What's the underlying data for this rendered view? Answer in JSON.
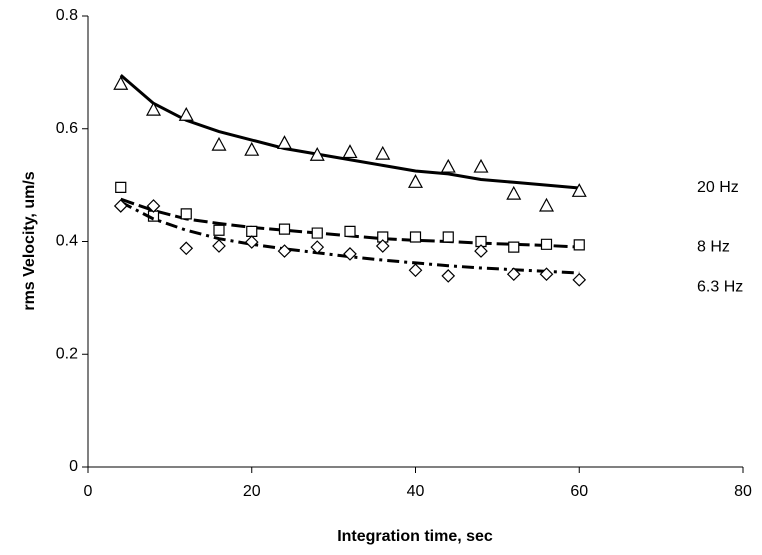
{
  "chart_data": {
    "type": "scatter",
    "xlabel": "Integration time, sec",
    "ylabel": "rms Velocity, um/s",
    "xlim": [
      0,
      80
    ],
    "xticks": [
      0,
      20,
      40,
      60,
      80
    ],
    "ylim": [
      0,
      0.8
    ],
    "yticks": [
      0,
      0.2,
      0.4,
      0.6,
      0.8
    ],
    "grid": false,
    "x": [
      4,
      8,
      12,
      16,
      20,
      24,
      28,
      32,
      36,
      40,
      44,
      48,
      52,
      56,
      60
    ],
    "series": [
      {
        "name": "20 Hz",
        "color": "#000000",
        "marker": "triangle",
        "line_style": "solid",
        "values": [
          0.679,
          0.633,
          0.624,
          0.571,
          0.562,
          0.574,
          0.553,
          0.558,
          0.555,
          0.505,
          0.532,
          0.532,
          0.484,
          0.463,
          0.489
        ],
        "fit_values": [
          0.695,
          0.645,
          0.615,
          0.595,
          0.58,
          0.565,
          0.555,
          0.545,
          0.535,
          0.525,
          0.52,
          0.51,
          0.505,
          0.5,
          0.495
        ]
      },
      {
        "name": "8 Hz",
        "color": "#000000",
        "marker": "square",
        "line_style": "dashed",
        "values": [
          0.496,
          0.445,
          0.449,
          0.42,
          0.418,
          0.422,
          0.415,
          0.418,
          0.408,
          0.408,
          0.408,
          0.4,
          0.39,
          0.395,
          0.394
        ],
        "fit_values": [
          0.475,
          0.455,
          0.44,
          0.432,
          0.425,
          0.42,
          0.415,
          0.41,
          0.405,
          0.402,
          0.4,
          0.397,
          0.395,
          0.393,
          0.39
        ]
      },
      {
        "name": "6.3 Hz",
        "color": "#000000",
        "marker": "diamond",
        "line_style": "dashdot",
        "values": [
          0.463,
          0.463,
          0.388,
          0.392,
          0.399,
          0.383,
          0.39,
          0.378,
          0.392,
          0.349,
          0.339,
          0.383,
          0.342,
          0.342,
          0.332
        ],
        "fit_values": [
          0.47,
          0.44,
          0.42,
          0.405,
          0.395,
          0.387,
          0.38,
          0.373,
          0.367,
          0.362,
          0.357,
          0.353,
          0.35,
          0.347,
          0.344
        ]
      }
    ]
  }
}
